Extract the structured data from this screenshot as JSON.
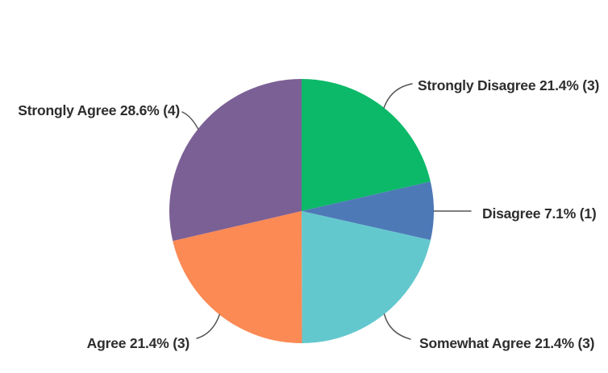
{
  "chart_data": {
    "type": "pie",
    "title": "",
    "labels_style": "outside-callouts",
    "start_angle_deg": 0,
    "direction": "clockwise",
    "background": "#ffffff",
    "label_color": "#2d2d2d",
    "callout_line_color": "#555555",
    "slices": [
      {
        "label": "Strongly Disagree",
        "pct": 21.4,
        "count": 3,
        "color": "#0cb968",
        "display": "Strongly Disagree 21.4% (3)"
      },
      {
        "label": "Disagree",
        "pct": 7.1,
        "count": 1,
        "color": "#4e79b7",
        "display": "Disagree 7.1% (1)"
      },
      {
        "label": "Somewhat Agree",
        "pct": 21.4,
        "count": 3,
        "color": "#63c8ce",
        "display": "Somewhat Agree 21.4% (3)"
      },
      {
        "label": "Agree",
        "pct": 21.4,
        "count": 3,
        "color": "#fb8a55",
        "display": "Agree 21.4% (3)"
      },
      {
        "label": "Strongly Agree",
        "pct": 28.6,
        "count": 4,
        "color": "#7b6095",
        "display": "Strongly Agree 28.6% (4)"
      }
    ]
  }
}
